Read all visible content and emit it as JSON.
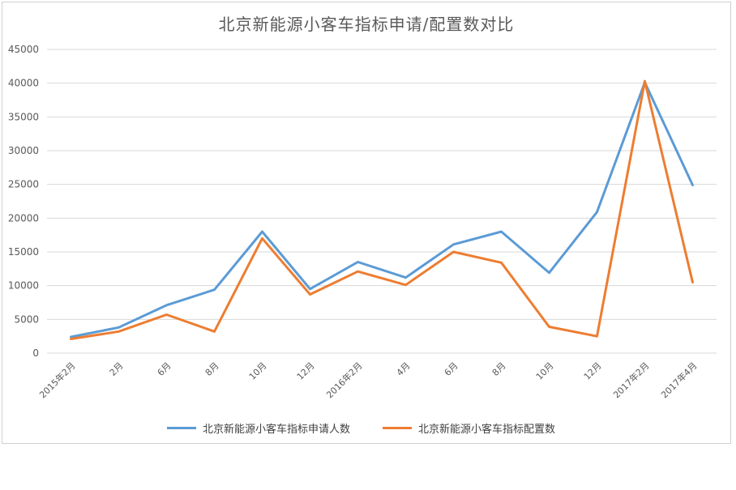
{
  "chart_data": {
    "type": "line",
    "title": "北京新能源小客车指标申请/配置数对比",
    "categories": [
      "2015年2月",
      "2月",
      "6月",
      "8月",
      "10月",
      "12月",
      "2016年2月",
      "4月",
      "6月",
      "8月",
      "10月",
      "12月",
      "2017年2月",
      "2017年4月"
    ],
    "y_ticks": [
      "0",
      "5000",
      "10000",
      "15000",
      "20000",
      "25000",
      "30000",
      "35000",
      "40000",
      "45000"
    ],
    "ylim": [
      0,
      45000
    ],
    "grid": true,
    "legend_position": "bottom",
    "series": [
      {
        "name": "北京新能源小客车指标申请人数",
        "color": "#5b9bd5",
        "values": [
          2400,
          3800,
          7100,
          9400,
          18000,
          9500,
          13500,
          11200,
          16100,
          18000,
          11900,
          20900,
          40100,
          24900
        ]
      },
      {
        "name": "北京新能源小客车指标配置数",
        "color": "#ed7d31",
        "values": [
          2100,
          3200,
          5700,
          3200,
          17000,
          8700,
          12100,
          10100,
          15000,
          13400,
          3900,
          2500,
          40300,
          10500
        ]
      }
    ]
  }
}
